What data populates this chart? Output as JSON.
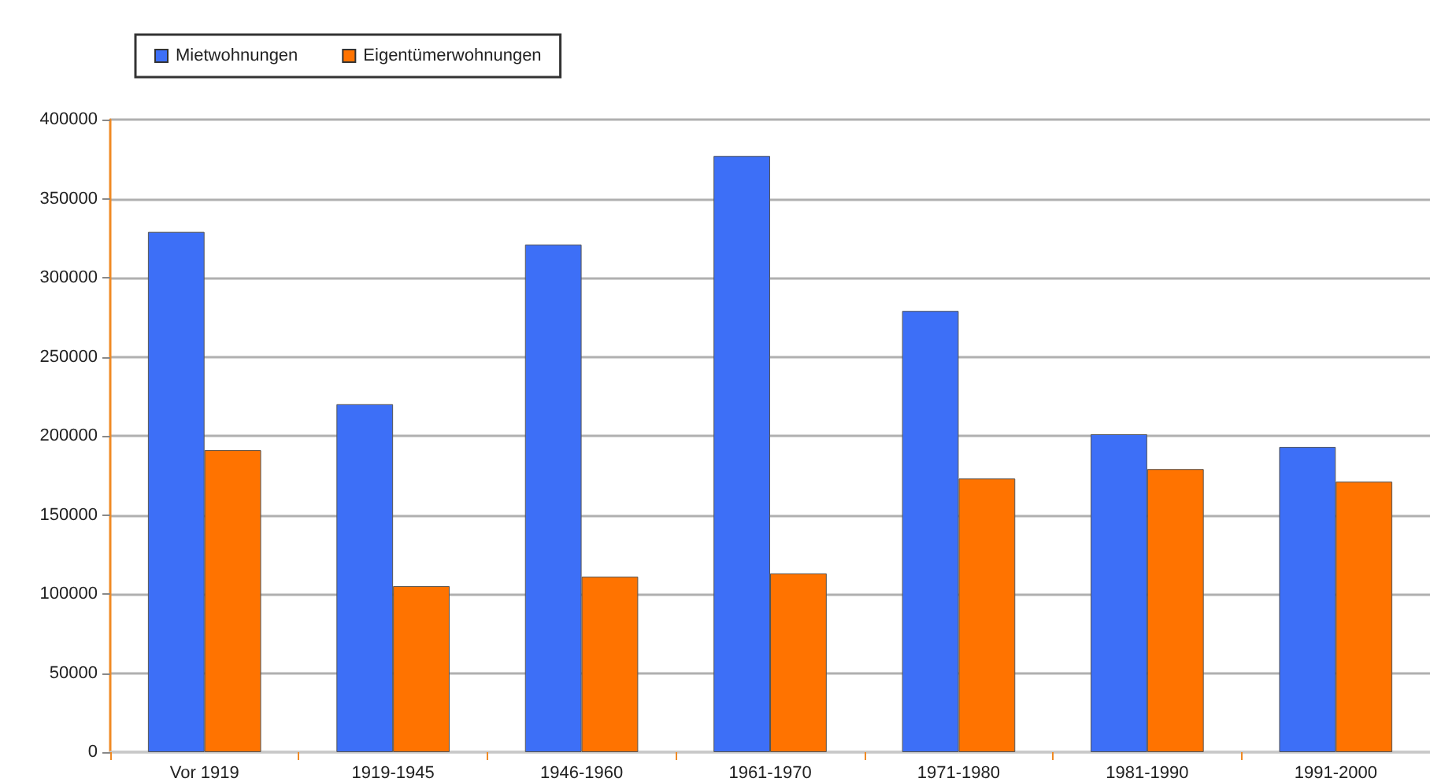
{
  "chart_data": {
    "type": "bar",
    "categories": [
      "Vor 1919",
      "1919-1945",
      "1946-1960",
      "1961-1970",
      "1971-1980",
      "1981-1990",
      "1991-2000"
    ],
    "series": [
      {
        "name": "Mietwohnungen",
        "color": "#3d6ff7",
        "values": [
          329000,
          220000,
          321000,
          377000,
          279000,
          201000,
          193000
        ]
      },
      {
        "name": "Eigentümerwohnungen",
        "color": "#ff7300",
        "values": [
          191000,
          105000,
          111000,
          113000,
          173000,
          179000,
          171000
        ]
      }
    ],
    "ylim": [
      0,
      400000
    ],
    "yticks": [
      0,
      50000,
      100000,
      150000,
      200000,
      250000,
      300000,
      350000,
      400000
    ],
    "grid": "y",
    "legend": "top left"
  }
}
